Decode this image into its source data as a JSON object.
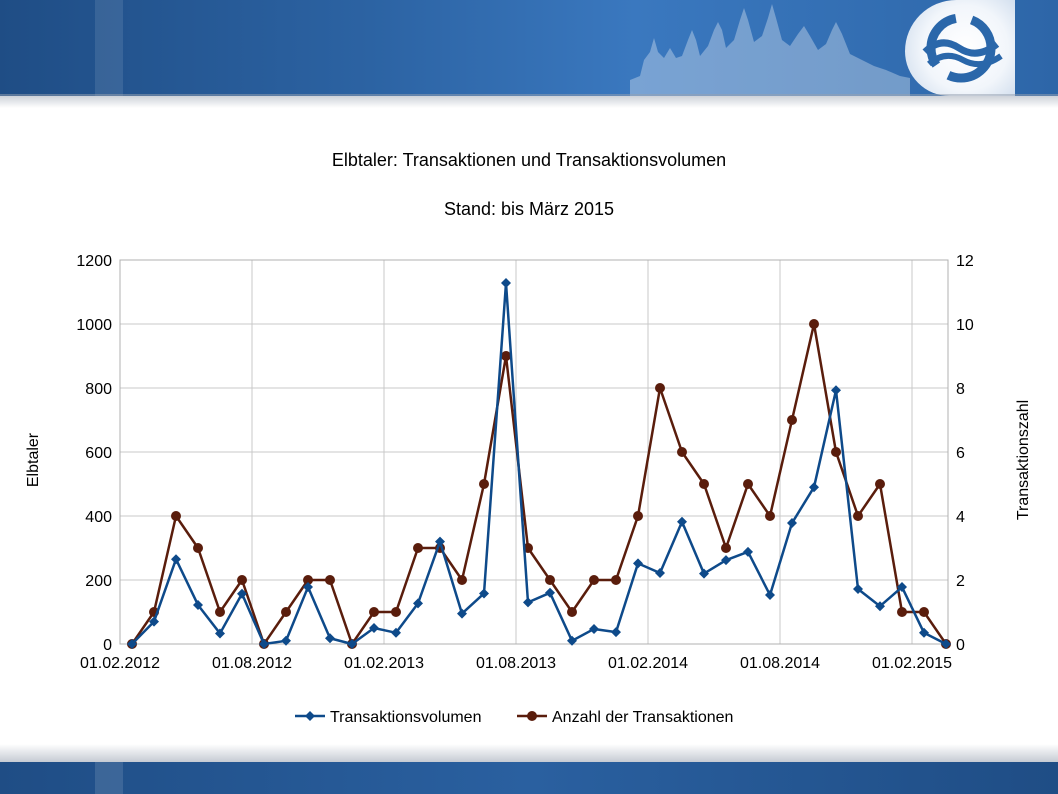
{
  "colors": {
    "vol": "#0e4a8a",
    "count": "#5a1d0c",
    "grid": "#c8c8c8"
  },
  "chart_data": {
    "type": "line",
    "title": "Elbtaler: Transaktionen und Transaktionsvolumen",
    "subtitle": "Stand: bis März 2015",
    "ylabel_left": "Elbtaler",
    "ylabel_right": "Transaktionszahl",
    "ylim_left": [
      0,
      1200
    ],
    "ylim_right": [
      0,
      12
    ],
    "yticks_left": [
      "0",
      "200",
      "400",
      "600",
      "800",
      "1000",
      "1200"
    ],
    "yticks_right": [
      "0",
      "2",
      "4",
      "6",
      "8",
      "10",
      "12"
    ],
    "xticks": [
      "01.02.2012",
      "01.08.2012",
      "01.02.2013",
      "01.08.2013",
      "01.02.2014",
      "01.08.2014",
      "01.02.2015"
    ],
    "grid": true,
    "legend_position": "bottom",
    "series": [
      {
        "name": "Transaktionsvolumen",
        "axis": "left",
        "marker": "diamond",
        "values": [
          0,
          70,
          265,
          122,
          33,
          157,
          0,
          10,
          178,
          18,
          0,
          50,
          35,
          127,
          320,
          95,
          158,
          1128,
          130,
          160,
          10,
          47,
          37,
          252,
          222,
          382,
          220,
          262,
          288,
          153,
          378,
          490,
          793,
          172,
          118,
          178,
          35,
          0
        ]
      },
      {
        "name": "Anzahl der Transaktionen",
        "axis": "right",
        "marker": "circle",
        "values": [
          0,
          1,
          4,
          3,
          1,
          2,
          0,
          1,
          2,
          2,
          0,
          1,
          1,
          3,
          3,
          2,
          5,
          9,
          3,
          2,
          1,
          2,
          2,
          4,
          8,
          6,
          5,
          3,
          5,
          4,
          7,
          10,
          6,
          4,
          5,
          1,
          1,
          0
        ]
      }
    ]
  }
}
